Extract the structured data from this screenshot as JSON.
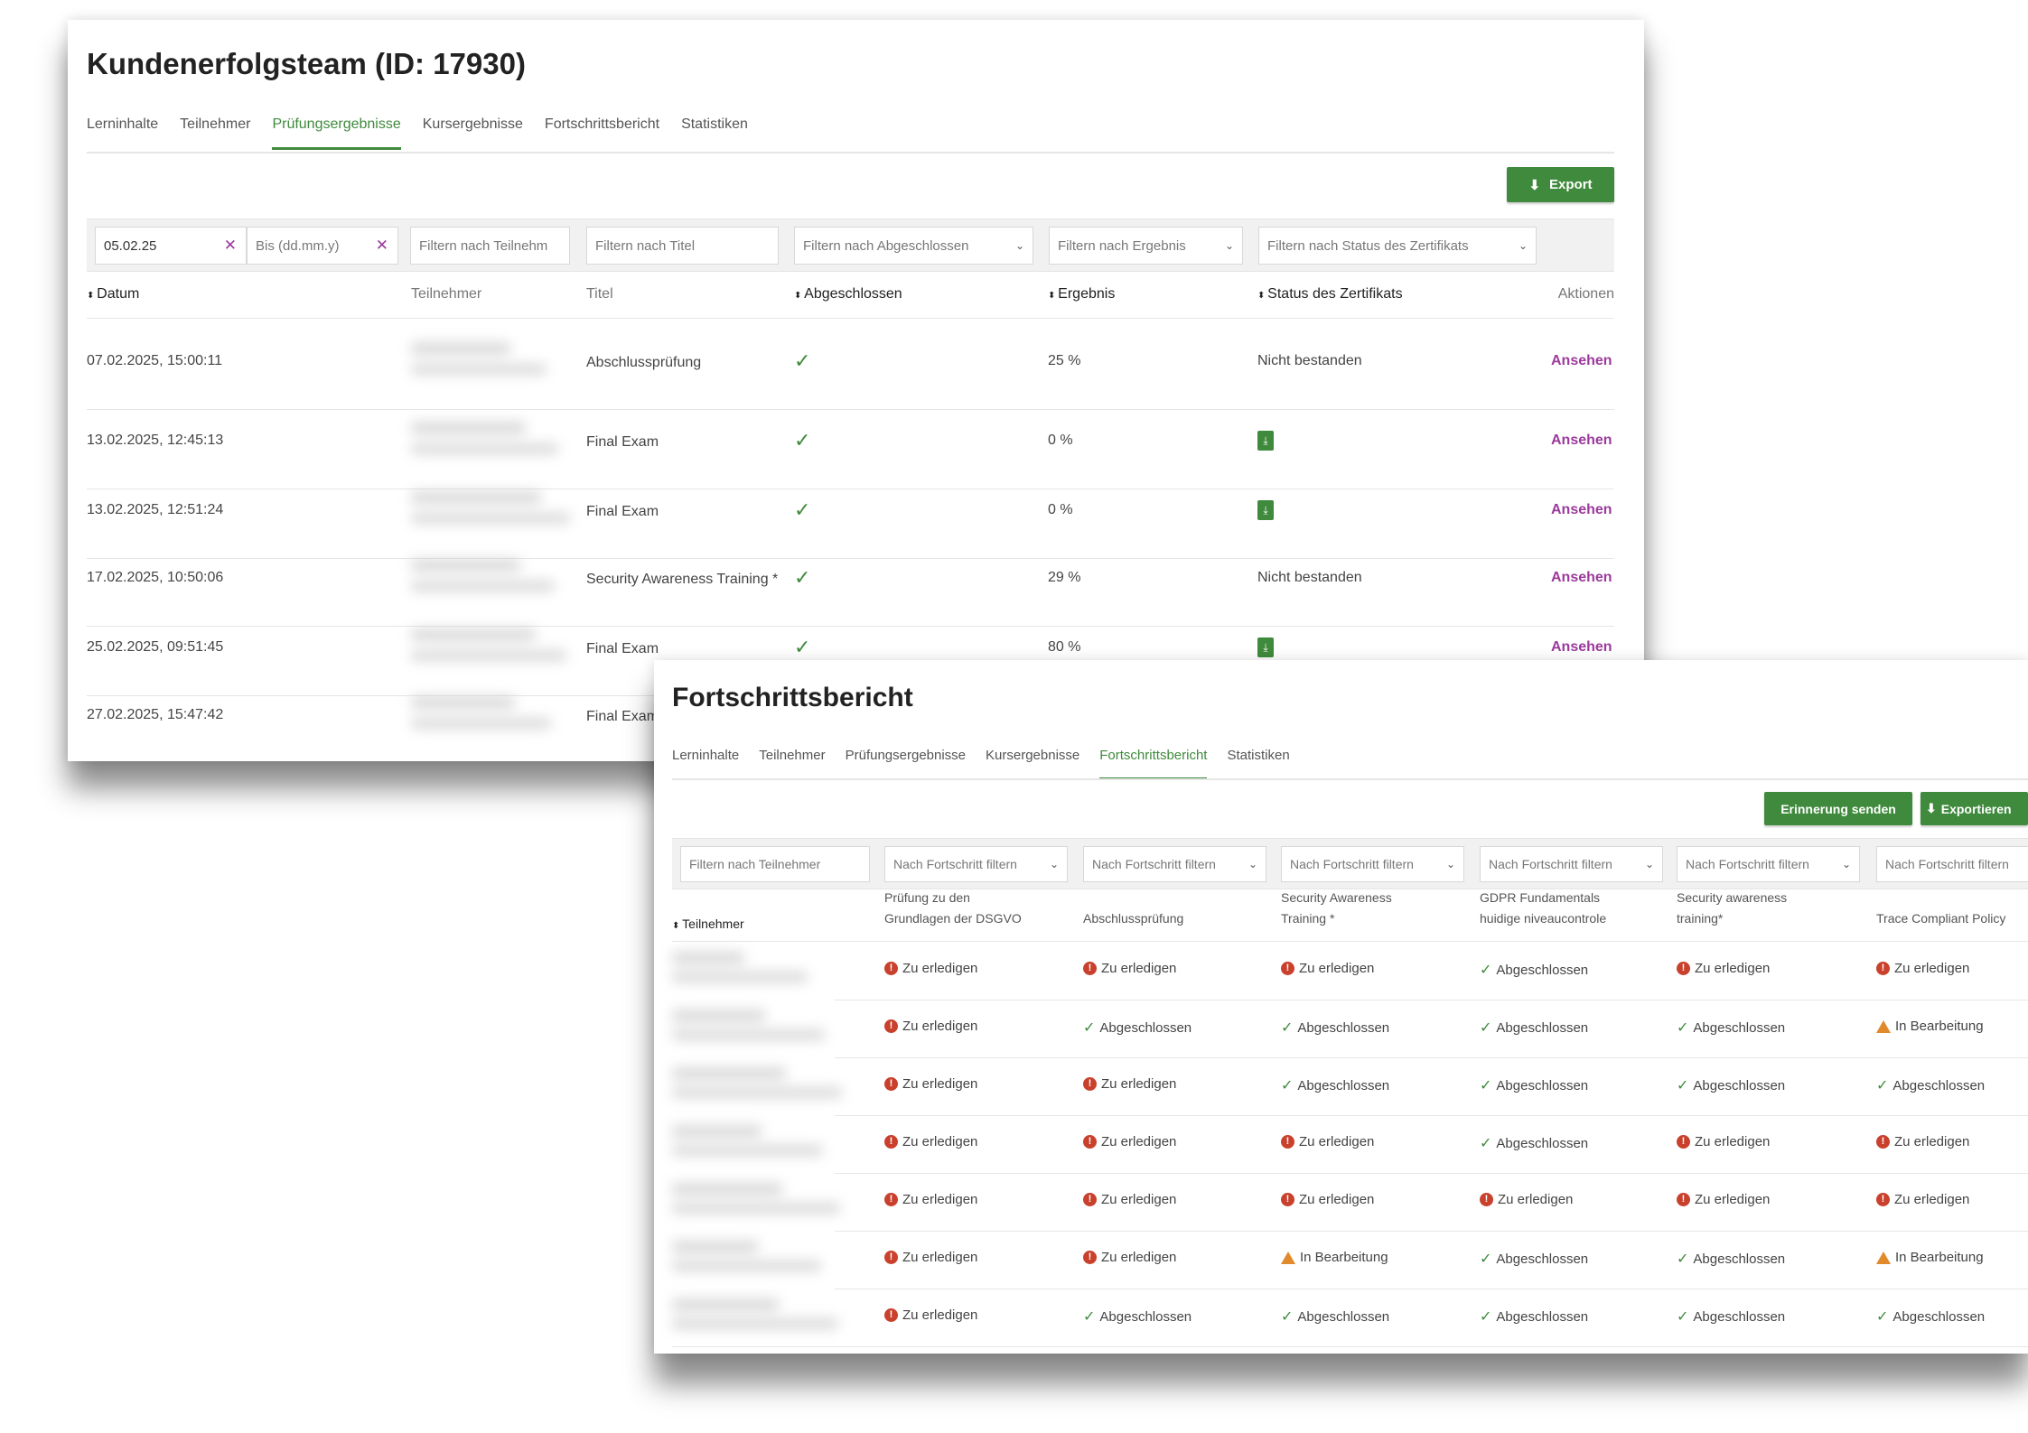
{
  "colors": {
    "accent": "#3f8a3c",
    "link": "#9b3a9b",
    "todo": "#c9402c",
    "in_progress": "#e08a2c"
  },
  "p1": {
    "title": "Kundenerfolgsteam (ID: 17930)",
    "tabs": [
      "Lerninhalte",
      "Teilnehmer",
      "Prüfungsergebnisse",
      "Kursergebnisse",
      "Fortschrittsbericht",
      "Statistiken"
    ],
    "active_tab": 2,
    "export_label": "Export",
    "filters": {
      "date_from": "05.02.25",
      "date_to_placeholder": "Bis (dd.mm.y)",
      "participant": "Filtern nach Teilnehm",
      "title": "Filtern nach Titel",
      "completed": "Filtern nach Abgeschlossen",
      "result": "Filtern nach Ergebnis",
      "cert": "Filtern nach Status des Zertifikats"
    },
    "columns": [
      "Datum",
      "Teilnehmer",
      "Titel",
      "Abgeschlossen",
      "Ergebnis",
      "Status des Zertifikats",
      "Aktionen"
    ],
    "rows": [
      {
        "date": "07.02.2025, 15:00:11",
        "title": "Abschlussprüfung",
        "completed": true,
        "result": "25 %",
        "cert": "Nicht bestanden",
        "action": "Ansehen"
      },
      {
        "date": "13.02.2025, 12:45:13",
        "title": "Final Exam",
        "completed": true,
        "result": "0 %",
        "cert": "pdf-icon",
        "action": "Ansehen"
      },
      {
        "date": "13.02.2025, 12:51:24",
        "title": "Final Exam",
        "completed": true,
        "result": "0 %",
        "cert": "pdf-icon",
        "action": "Ansehen"
      },
      {
        "date": "17.02.2025, 10:50:06",
        "title": "Security Awareness Training *",
        "completed": true,
        "result": "29 %",
        "cert": "Nicht bestanden",
        "action": "Ansehen"
      },
      {
        "date": "25.02.2025, 09:51:45",
        "title": "Final Exam",
        "completed": true,
        "result": "80 %",
        "cert": "pdf-icon",
        "action": "Ansehen"
      },
      {
        "date": "27.02.2025, 15:47:42",
        "title": "Final Exam"
      }
    ]
  },
  "p2": {
    "title": "Fortschrittsbericht",
    "tabs": [
      "Lerninhalte",
      "Teilnehmer",
      "Prüfungsergebnisse",
      "Kursergebnisse",
      "Fortschrittsbericht",
      "Statistiken"
    ],
    "active_tab": 4,
    "remind_label": "Erinnerung senden",
    "export_label": "Exportieren",
    "participant_filter": "Filtern nach Teilnehmer",
    "progress_filter": "Nach Fortschritt filtern",
    "participant_col": "Teilnehmer",
    "columns": [
      "Prüfung zu den Grundlagen der DSGVO",
      "Abschlussprüfung",
      "Security Awareness Training *",
      "GDPR Fundamentals huidige niveaucontrole",
      "Security awareness training*",
      "Trace Compliant Policy"
    ],
    "status_labels": {
      "Z": "Zu erledigen",
      "A": "Abgeschlossen",
      "B": "In Bearbeitung"
    },
    "rows": [
      [
        "Z",
        "Z",
        "Z",
        "A",
        "Z",
        "Z"
      ],
      [
        "Z",
        "A",
        "A",
        "A",
        "A",
        "B"
      ],
      [
        "Z",
        "Z",
        "A",
        "A",
        "A",
        "A"
      ],
      [
        "Z",
        "Z",
        "Z",
        "A",
        "Z",
        "Z"
      ],
      [
        "Z",
        "Z",
        "Z",
        "Z",
        "Z",
        "Z"
      ],
      [
        "Z",
        "Z",
        "B",
        "A",
        "A",
        "B"
      ],
      [
        "Z",
        "A",
        "A",
        "A",
        "A",
        "A"
      ]
    ]
  }
}
